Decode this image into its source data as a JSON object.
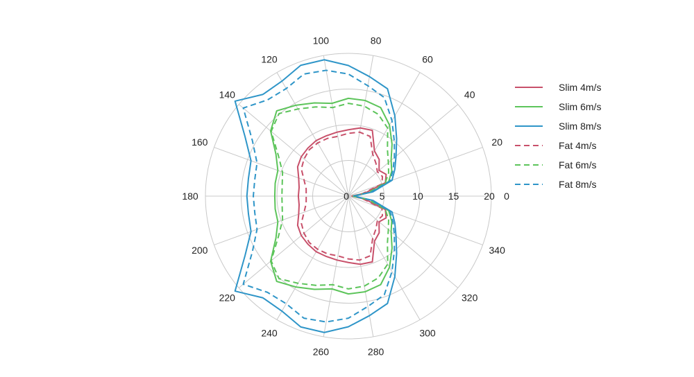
{
  "chart_data": {
    "type": "polar-line",
    "angle_unit": "degrees",
    "angle_ticks": [
      0,
      20,
      40,
      60,
      80,
      100,
      120,
      140,
      160,
      180,
      200,
      220,
      240,
      260,
      280,
      300,
      320,
      340
    ],
    "angle_tick_labels": [
      "0",
      "20",
      "40",
      "60",
      "80",
      "100",
      "120",
      "140",
      "160",
      "180",
      "200",
      "220",
      "240",
      "260",
      "280",
      "300",
      "320",
      "340"
    ],
    "radial_ticks": [
      0,
      5,
      10,
      15,
      20
    ],
    "radial_tick_labels": [
      "0",
      "5",
      "10",
      "15",
      "20"
    ],
    "rlim": [
      0,
      20
    ],
    "grid": true,
    "legend_position": "right",
    "angles_half": [
      0,
      10,
      20,
      30,
      40,
      50,
      60,
      70,
      80,
      90,
      100,
      110,
      120,
      130,
      140,
      150,
      160,
      170,
      180
    ],
    "series": [
      {
        "name": "Slim 4m/s",
        "color": "#c8506a",
        "dash": "solid",
        "values_half": [
          0.5,
          2.3,
          5.5,
          6.1,
          5.6,
          6.7,
          7.3,
          9.8,
          9.7,
          9.3,
          9.1,
          9.0,
          9.0,
          8.8,
          8.6,
          8.2,
          7.4,
          7.0,
          7.0
        ]
      },
      {
        "name": "Slim 6m/s",
        "color": "#5cc45a",
        "dash": "solid",
        "values_half": [
          0.6,
          3.3,
          6.0,
          7.0,
          7.8,
          9.5,
          11.5,
          13.2,
          13.6,
          13.7,
          13.2,
          13.9,
          14.7,
          15.6,
          14.2,
          11.7,
          10.5,
          10.4,
          10.3
        ]
      },
      {
        "name": "Slim 8m/s",
        "color": "#2e95c8",
        "dash": "solid",
        "values_half": [
          0.7,
          3.5,
          6.5,
          7.5,
          8.7,
          10.5,
          13.0,
          16.0,
          17.0,
          18.3,
          19.4,
          19.5,
          18.6,
          18.6,
          20.7,
          16.7,
          14.5,
          14.2,
          14.2
        ]
      },
      {
        "name": "Fat 4m/s",
        "color": "#c8506a",
        "dash": "dashed",
        "values_half": [
          0.5,
          2.0,
          5.0,
          5.5,
          5.3,
          6.0,
          6.8,
          8.9,
          9.1,
          8.8,
          8.5,
          8.6,
          8.6,
          8.5,
          8.1,
          7.6,
          6.6,
          6.0,
          5.9
        ]
      },
      {
        "name": "Fat 6m/s",
        "color": "#5cc45a",
        "dash": "dashed",
        "values_half": [
          0.6,
          2.8,
          5.5,
          6.5,
          7.3,
          8.5,
          11.0,
          12.2,
          12.8,
          13.0,
          12.6,
          13.3,
          14.1,
          15.1,
          14.1,
          11.3,
          9.8,
          9.4,
          9.3
        ]
      },
      {
        "name": "Fat 8m/s",
        "color": "#2e95c8",
        "dash": "dashed",
        "values_half": [
          0.7,
          3.2,
          6.2,
          7.2,
          8.4,
          10.0,
          12.2,
          14.7,
          15.7,
          17.1,
          17.9,
          18.2,
          17.4,
          17.6,
          19.2,
          15.5,
          13.6,
          13.3,
          13.3
        ]
      }
    ]
  }
}
